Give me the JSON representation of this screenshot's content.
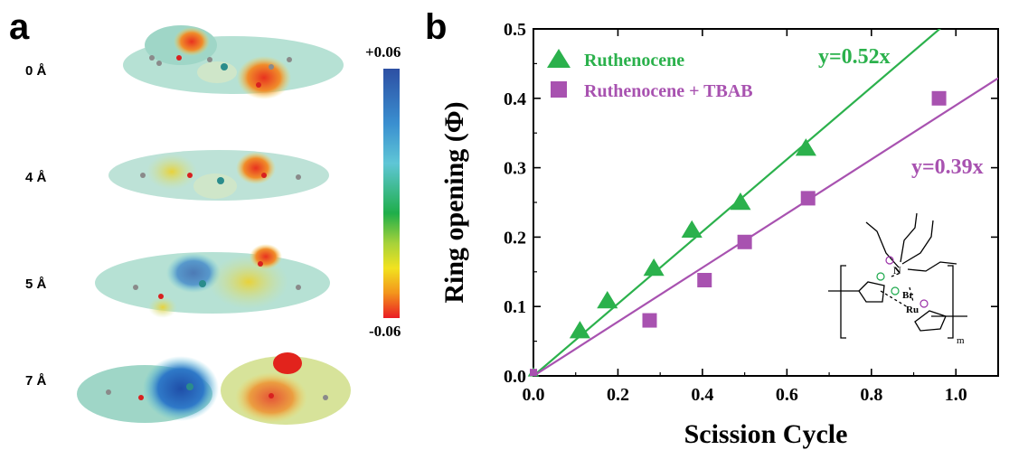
{
  "panel_a": {
    "letter": "a",
    "distance_labels": [
      "0 Å",
      "4 Å",
      "5 Å",
      "7 Å"
    ],
    "colorbar": {
      "max_label": "+0.06",
      "min_label": "-0.06"
    }
  },
  "panel_b": {
    "letter": "b",
    "inset": {
      "N_label": "N",
      "Br_label": "Br",
      "Ru_label": "Ru",
      "m_label": "m",
      "charge_colors": {
        "plus": "#9b30a8",
        "minus": "#1aa84a"
      }
    }
  },
  "chart_data": {
    "type": "scatter",
    "xlabel": "Scission Cycle",
    "ylabel": "Ring opening (Φ)",
    "xlim": [
      0.0,
      1.1
    ],
    "ylim": [
      0.0,
      0.5
    ],
    "xticks": [
      0.0,
      0.2,
      0.4,
      0.6,
      0.8,
      1.0
    ],
    "xtick_labels": [
      "0.0",
      "0.2",
      "0.4",
      "0.6",
      "0.8",
      "1.0"
    ],
    "yticks": [
      0.0,
      0.1,
      0.2,
      0.3,
      0.4,
      0.5
    ],
    "ytick_labels": [
      "0.0",
      "0.1",
      "0.2",
      "0.3",
      "0.4",
      "0.5"
    ],
    "grid": false,
    "legend_position": "top-left",
    "series": [
      {
        "name": "Ruthenocene",
        "marker": "triangle",
        "color": "#2bb14c",
        "x": [
          0.0,
          0.11,
          0.175,
          0.285,
          0.375,
          0.49,
          0.645
        ],
        "y": [
          0.005,
          0.065,
          0.108,
          0.155,
          0.21,
          0.25,
          0.328
        ],
        "fit_slope": 0.52,
        "fit_label": "y=0.52x"
      },
      {
        "name": "Ruthenocene + TBAB",
        "marker": "square",
        "color": "#a852b0",
        "x": [
          0.0,
          0.275,
          0.405,
          0.5,
          0.65,
          0.96
        ],
        "y": [
          0.005,
          0.08,
          0.138,
          0.193,
          0.256,
          0.4
        ],
        "fit_slope": 0.39,
        "fit_label": "y=0.39x"
      }
    ]
  }
}
